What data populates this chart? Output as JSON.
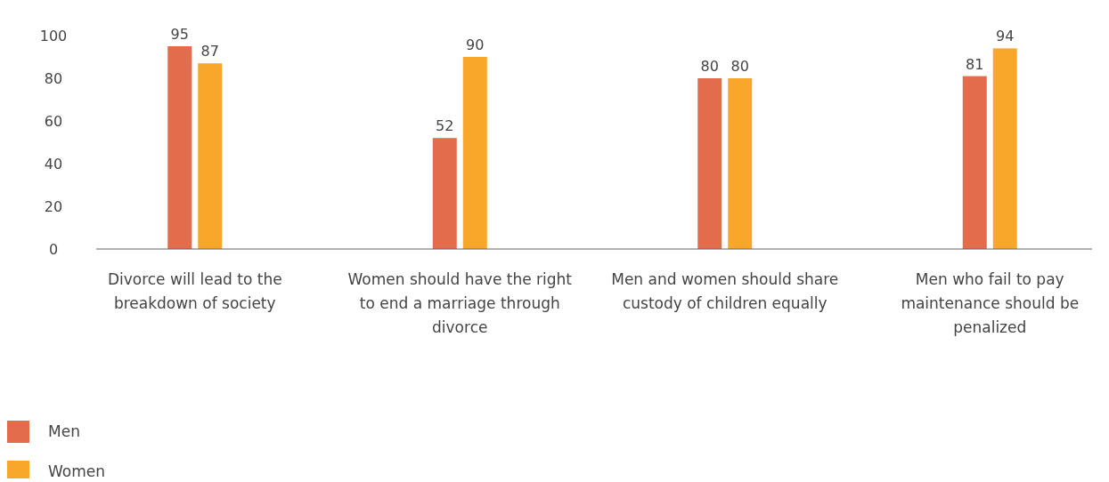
{
  "chart_data": {
    "type": "bar",
    "categories": [
      "Divorce will lead to the breakdown of society",
      "Women should have the right to end a marriage through divorce",
      "Men and women should share custody of children equally",
      "Men who fail to pay maintenance should be penalized"
    ],
    "series": [
      {
        "name": "Men",
        "color": "#e36c4c",
        "values": [
          95,
          52,
          80,
          81
        ]
      },
      {
        "name": "Women",
        "color": "#f9a72b",
        "values": [
          87,
          90,
          80,
          94
        ]
      }
    ],
    "ylim": [
      0,
      100
    ],
    "yticks": [
      0,
      20,
      40,
      60,
      80,
      100
    ],
    "grid": false,
    "legend": "bottom left",
    "data_labels": true
  }
}
